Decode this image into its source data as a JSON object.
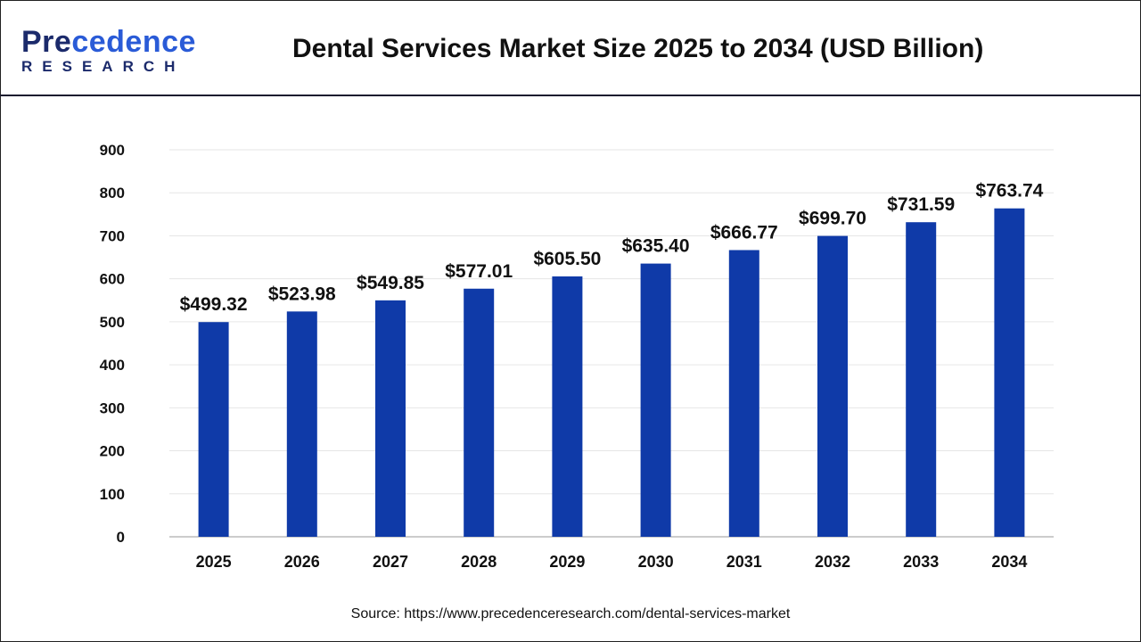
{
  "logo": {
    "line1": "Precedence",
    "line2": "RESEARCH"
  },
  "title": "Dental Services Market Size 2025 to 2034 (USD Billion)",
  "source": "Source: https://www.precedenceresearch.com/dental-services-market",
  "colors": {
    "bar": "#0f3aa8",
    "grid": "#e6e6e6"
  },
  "chart_data": {
    "type": "bar",
    "title": "Dental Services Market Size 2025 to 2034 (USD Billion)",
    "categories": [
      "2025",
      "2026",
      "2027",
      "2028",
      "2029",
      "2030",
      "2031",
      "2032",
      "2033",
      "2034"
    ],
    "values": [
      499.32,
      523.98,
      549.85,
      577.01,
      605.5,
      635.4,
      666.77,
      699.7,
      731.59,
      763.74
    ],
    "labels": [
      "$499.32",
      "$523.98",
      "$549.85",
      "$577.01",
      "$605.50",
      "$635.40",
      "$666.77",
      "$699.70",
      "$731.59",
      "$763.74"
    ],
    "yticks": [
      0,
      100,
      200,
      300,
      400,
      500,
      600,
      700,
      800,
      900
    ],
    "ylim": [
      0,
      900
    ],
    "grid": true,
    "xlabel": "",
    "ylabel": ""
  }
}
